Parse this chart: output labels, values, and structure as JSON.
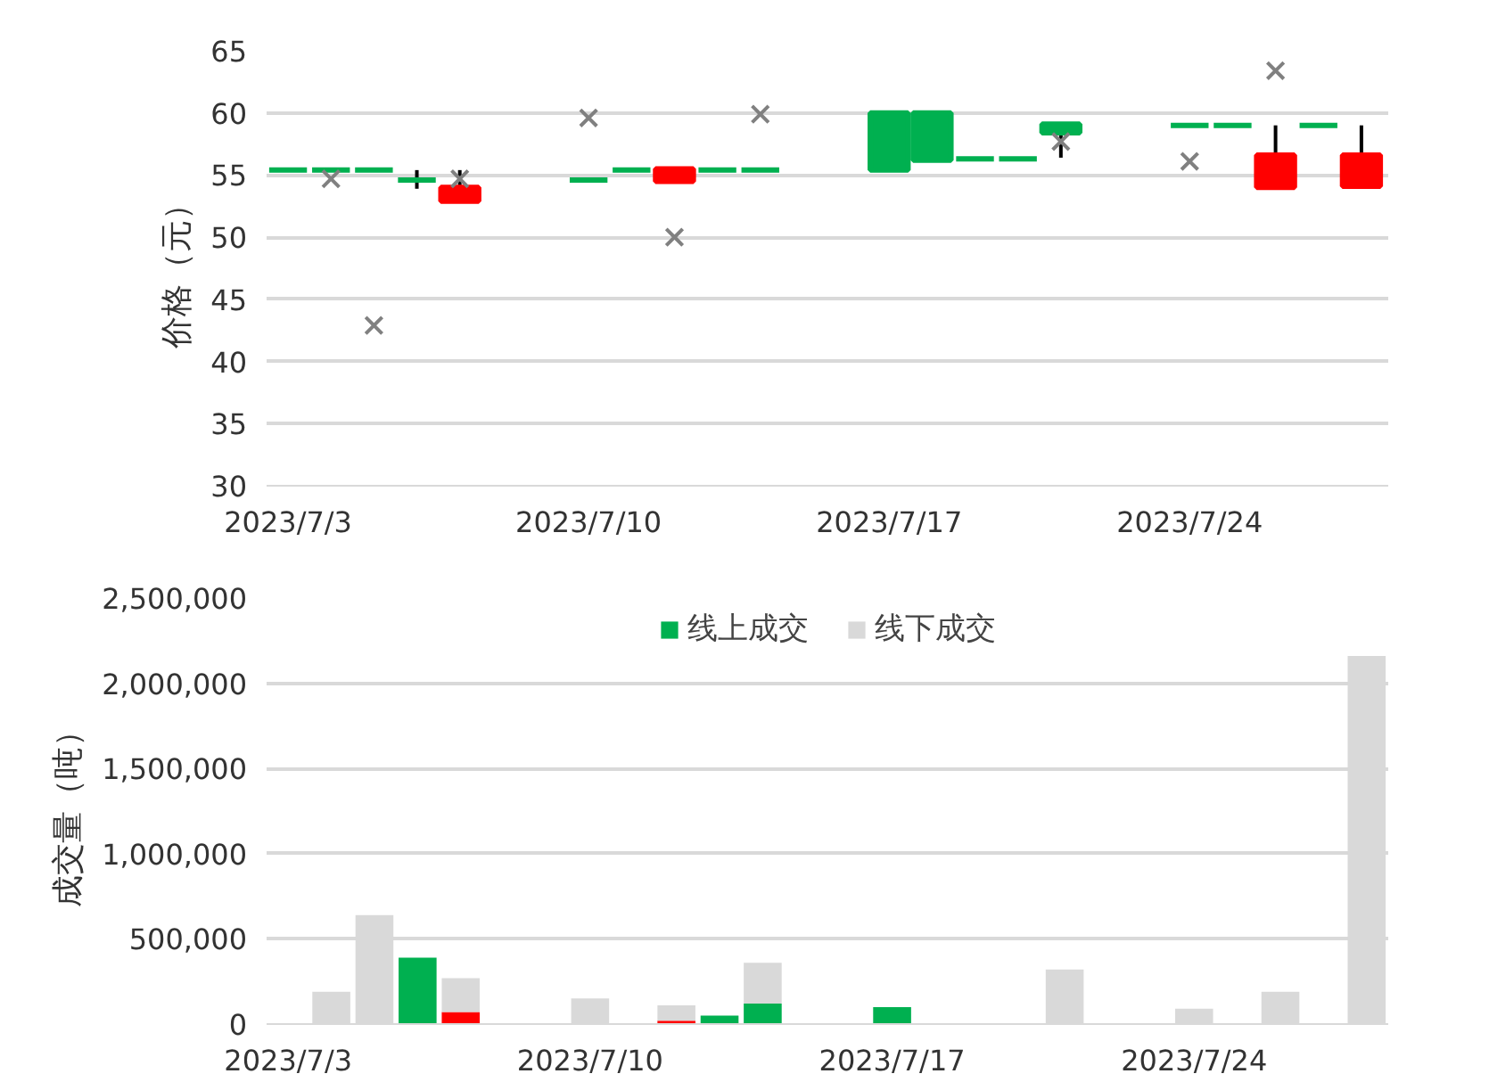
{
  "chart_data": [
    {
      "type": "candlestick",
      "ylabel": "价格（元）",
      "x": [
        "2023-07-03",
        "2023-07-04",
        "2023-07-05",
        "2023-07-06",
        "2023-07-07",
        "2023-07-10",
        "2023-07-11",
        "2023-07-12",
        "2023-07-13",
        "2023-07-14",
        "2023-07-17",
        "2023-07-18",
        "2023-07-19",
        "2023-07-20",
        "2023-07-21",
        "2023-07-24",
        "2023-07-25",
        "2023-07-26",
        "2023-07-27",
        "2023-07-28"
      ],
      "ohlc": [
        [
          55.4,
          55.4,
          55.4,
          55.4
        ],
        [
          55.4,
          55.4,
          55.4,
          55.4
        ],
        [
          55.4,
          55.4,
          55.4,
          55.4
        ],
        [
          54.6,
          55.4,
          53.9,
          54.6
        ],
        [
          52.9,
          55.4,
          52.9,
          54.0
        ],
        [
          54.6,
          54.6,
          54.6,
          54.6
        ],
        [
          55.4,
          55.4,
          55.4,
          55.4
        ],
        [
          54.5,
          55.5,
          54.5,
          55.5
        ],
        [
          55.4,
          55.4,
          55.4,
          55.4
        ],
        [
          55.4,
          55.4,
          55.4,
          55.4
        ],
        [
          60.0,
          60.0,
          55.4,
          55.4
        ],
        [
          60.0,
          60.0,
          56.2,
          56.2
        ],
        [
          56.3,
          56.3,
          56.3,
          56.3
        ],
        [
          56.3,
          56.3,
          56.3,
          56.3
        ],
        [
          59.1,
          59.1,
          56.4,
          58.4
        ],
        [
          59.0,
          59.0,
          59.0,
          59.0
        ],
        [
          59.0,
          59.0,
          59.0,
          59.0
        ],
        [
          54.0,
          59.0,
          54.0,
          56.6
        ],
        [
          59.0,
          59.0,
          59.0,
          59.0
        ],
        [
          54.1,
          59.0,
          54.1,
          56.6
        ]
      ],
      "colors": [
        "#00b050",
        "#00b050",
        "#00b050",
        "#00b050",
        "#ff0000",
        "#00b050",
        "#00b050",
        "#ff0000",
        "#00b050",
        "#00b050",
        "#00b050",
        "#00b050",
        "#00b050",
        "#00b050",
        "#00b050",
        "#00b050",
        "#00b050",
        "#ff0000",
        "#00b050",
        "#ff0000"
      ],
      "series": [
        {
          "type": "scatter",
          "color": "#808080",
          "marker": "cross",
          "x": [
            "2023-07-04",
            "2023-07-05",
            "2023-07-07",
            "2023-07-10",
            "2023-07-12",
            "2023-07-14",
            "2023-07-21",
            "2023-07-24",
            "2023-07-26"
          ],
          "values": [
            54.7,
            42.9,
            54.7,
            59.6,
            50.0,
            59.9,
            57.7,
            56.1,
            63.4
          ]
        }
      ],
      "xlim": [
        "2023-07-02T12:00",
        "2023-07-28T15:00"
      ],
      "xticks": [
        {
          "value": "2023-07-03",
          "label": "2023/7/3"
        },
        {
          "value": "2023-07-10",
          "label": "2023/7/10"
        },
        {
          "value": "2023-07-17",
          "label": "2023/7/17"
        },
        {
          "value": "2023-07-24",
          "label": "2023/7/24"
        }
      ],
      "ylim": [
        30,
        65
      ],
      "yticks": [
        30,
        35,
        40,
        45,
        50,
        55,
        60,
        65
      ],
      "grid": "y",
      "legend": false
    },
    {
      "type": "bar",
      "stacked": true,
      "ylabel": "成交量（吨）",
      "x": [
        "2023-07-04",
        "2023-07-05",
        "2023-07-06",
        "2023-07-07",
        "2023-07-10",
        "2023-07-12",
        "2023-07-13",
        "2023-07-14",
        "2023-07-17",
        "2023-07-21",
        "2023-07-24",
        "2023-07-26",
        "2023-07-28"
      ],
      "series": [
        {
          "name": "线上成交",
          "color": "#00b050",
          "values": [
            null,
            null,
            390000,
            null,
            null,
            null,
            50000,
            120000,
            100000,
            null,
            null,
            null,
            null
          ]
        },
        {
          "color": "#ff0000",
          "values": [
            null,
            null,
            null,
            70000,
            null,
            20000,
            null,
            null,
            null,
            null,
            null,
            null,
            null
          ]
        },
        {
          "name": "线下成交",
          "color": "#d9d9d9",
          "values": [
            190000,
            640000,
            null,
            200000,
            150000,
            90000,
            null,
            240000,
            null,
            320000,
            90000,
            190000,
            2160000
          ]
        }
      ],
      "xlim": [
        "2023-07-02T12:00",
        "2023-07-28T12:00"
      ],
      "xticks": [
        {
          "value": "2023-07-03",
          "label": "2023/7/3"
        },
        {
          "value": "2023-07-10",
          "label": "2023/7/10"
        },
        {
          "value": "2023-07-17",
          "label": "2023/7/17"
        },
        {
          "value": "2023-07-24",
          "label": "2023/7/24"
        }
      ],
      "ylim": [
        0,
        2500000
      ],
      "yticks": [
        {
          "value": 0,
          "label": "0"
        },
        {
          "value": 500000,
          "label": "500,000"
        },
        {
          "value": 1000000,
          "label": "1,000,000"
        },
        {
          "value": 1500000,
          "label": "1,500,000"
        },
        {
          "value": 2000000,
          "label": "2,000,000"
        },
        {
          "value": 2500000,
          "label": "2,500,000"
        }
      ],
      "grid": "y",
      "legend": "top"
    }
  ]
}
